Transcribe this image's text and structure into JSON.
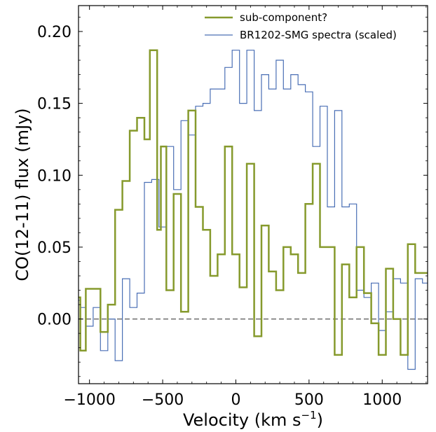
{
  "chart_data": {
    "type": "line",
    "xlabel": "Velocity (km s",
    "xlabel_superscript": "−1",
    "xlabel_suffix": ")",
    "ylabel": "CO(12-11) flux (mJy)",
    "xlim": [
      -1075,
      1310
    ],
    "ylim": [
      -0.045,
      0.218
    ],
    "x_ticks": [
      -1000,
      -500,
      0,
      500,
      1000
    ],
    "x_tick_labels": [
      "−1000",
      "−500",
      "0",
      "500",
      "1000"
    ],
    "y_ticks": [
      0.0,
      0.05,
      0.1,
      0.15,
      0.2
    ],
    "y_tick_labels": [
      "0.00",
      "0.05",
      "0.10",
      "0.15",
      "0.20"
    ],
    "zero_line": {
      "y": 0,
      "style": "dashed",
      "color": "#555555"
    },
    "grid": false,
    "legend_position": "top-right",
    "series": [
      {
        "name": "sub-component?",
        "color": "#869a2d",
        "stroke_width": 2.5,
        "step": "mid",
        "x": [
          -1075,
          -1050,
          -1000,
          -950,
          -900,
          -850,
          -800,
          -750,
          -700,
          -650,
          -600,
          -575,
          -550,
          -525,
          -500,
          -450,
          -400,
          -350,
          -300,
          -250,
          -200,
          -150,
          -100,
          -50,
          0,
          50,
          100,
          150,
          200,
          250,
          300,
          350,
          400,
          450,
          500,
          550,
          600,
          650,
          700,
          750,
          800,
          850,
          900,
          950,
          1000,
          1050,
          1100,
          1150,
          1200,
          1250,
          1300
        ],
        "y": [
          0.015,
          -0.022,
          0.021,
          0.021,
          -0.009,
          0.01,
          0.076,
          0.096,
          0.131,
          0.14,
          0.125,
          0.187,
          0.187,
          0.062,
          0.12,
          0.02,
          0.087,
          0.005,
          0.145,
          0.078,
          0.062,
          0.03,
          0.045,
          0.12,
          0.045,
          0.022,
          0.108,
          -0.012,
          0.065,
          0.033,
          0.02,
          0.05,
          0.045,
          0.032,
          0.08,
          0.108,
          0.05,
          0.05,
          -0.025,
          0.038,
          0.015,
          0.05,
          0.018,
          -0.003,
          -0.025,
          0.035,
          0.0,
          -0.025,
          0.052,
          0.032,
          0.032
        ]
      },
      {
        "name": "BR1202-SMG spectra (scaled)",
        "color": "#4a6fb5",
        "stroke_width": 1.2,
        "step": "mid",
        "x": [
          -1075,
          -1050,
          -1000,
          -950,
          -900,
          -850,
          -800,
          -750,
          -700,
          -650,
          -600,
          -550,
          -500,
          -450,
          -400,
          -350,
          -300,
          -250,
          -200,
          -150,
          -100,
          -50,
          0,
          50,
          100,
          150,
          200,
          250,
          300,
          350,
          400,
          450,
          500,
          550,
          600,
          650,
          700,
          750,
          800,
          850,
          900,
          950,
          1000,
          1050,
          1100,
          1150,
          1200,
          1250,
          1300
        ],
        "y": [
          0.013,
          0.008,
          -0.005,
          0.008,
          -0.022,
          0.0,
          -0.029,
          0.028,
          0.008,
          0.018,
          0.095,
          0.097,
          0.064,
          0.12,
          0.09,
          0.138,
          0.128,
          0.148,
          0.15,
          0.16,
          0.16,
          0.175,
          0.187,
          0.15,
          0.187,
          0.145,
          0.17,
          0.16,
          0.18,
          0.16,
          0.17,
          0.163,
          0.158,
          0.12,
          0.148,
          0.078,
          0.145,
          0.078,
          0.08,
          0.02,
          0.015,
          0.025,
          -0.008,
          0.005,
          0.028,
          0.025,
          -0.035,
          0.028,
          0.025
        ]
      }
    ]
  }
}
